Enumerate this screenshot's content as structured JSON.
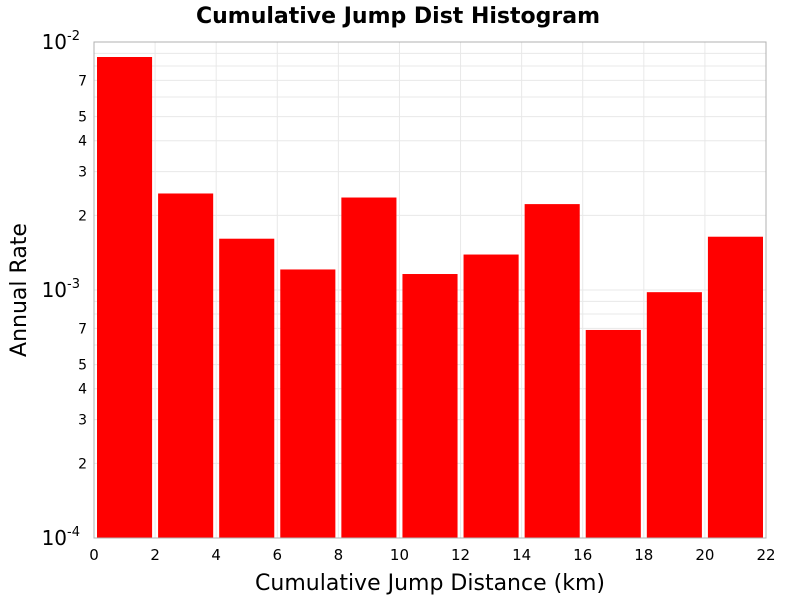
{
  "chart_data": {
    "type": "bar",
    "title": "Cumulative Jump Dist Histogram",
    "xlabel": "Cumulative Jump Distance (km)",
    "ylabel": "Annual Rate",
    "xlim": [
      0,
      22
    ],
    "ylim": [
      0.0001,
      0.01
    ],
    "yscale": "log",
    "grid": true,
    "bar_color": "#ff0000",
    "bin_width": 2,
    "x_ticks": [
      "0",
      "2",
      "4",
      "6",
      "8",
      "10",
      "12",
      "14",
      "16",
      "18",
      "20",
      "22"
    ],
    "y_decade_ticks": [
      {
        "value": 0.0001,
        "base": "10",
        "exp": "-4"
      },
      {
        "value": 0.001,
        "base": "10",
        "exp": "-3"
      },
      {
        "value": 0.01,
        "base": "10",
        "exp": "-2"
      }
    ],
    "y_minor_ticks": [
      {
        "value": 0.0002,
        "label": "2"
      },
      {
        "value": 0.0003,
        "label": "3"
      },
      {
        "value": 0.0004,
        "label": "4"
      },
      {
        "value": 0.0005,
        "label": "5"
      },
      {
        "value": 0.0007,
        "label": "7"
      },
      {
        "value": 0.002,
        "label": "2"
      },
      {
        "value": 0.003,
        "label": "3"
      },
      {
        "value": 0.004,
        "label": "4"
      },
      {
        "value": 0.005,
        "label": "5"
      },
      {
        "value": 0.007,
        "label": "7"
      }
    ],
    "bins": [
      {
        "x": 1,
        "value": 0.0087
      },
      {
        "x": 3,
        "value": 0.00245
      },
      {
        "x": 5,
        "value": 0.00161
      },
      {
        "x": 7,
        "value": 0.00121
      },
      {
        "x": 9,
        "value": 0.00236
      },
      {
        "x": 11,
        "value": 0.00116
      },
      {
        "x": 13,
        "value": 0.00139
      },
      {
        "x": 15,
        "value": 0.00222
      },
      {
        "x": 17,
        "value": 0.00069
      },
      {
        "x": 19,
        "value": 0.00098
      },
      {
        "x": 21,
        "value": 0.00164
      }
    ]
  }
}
